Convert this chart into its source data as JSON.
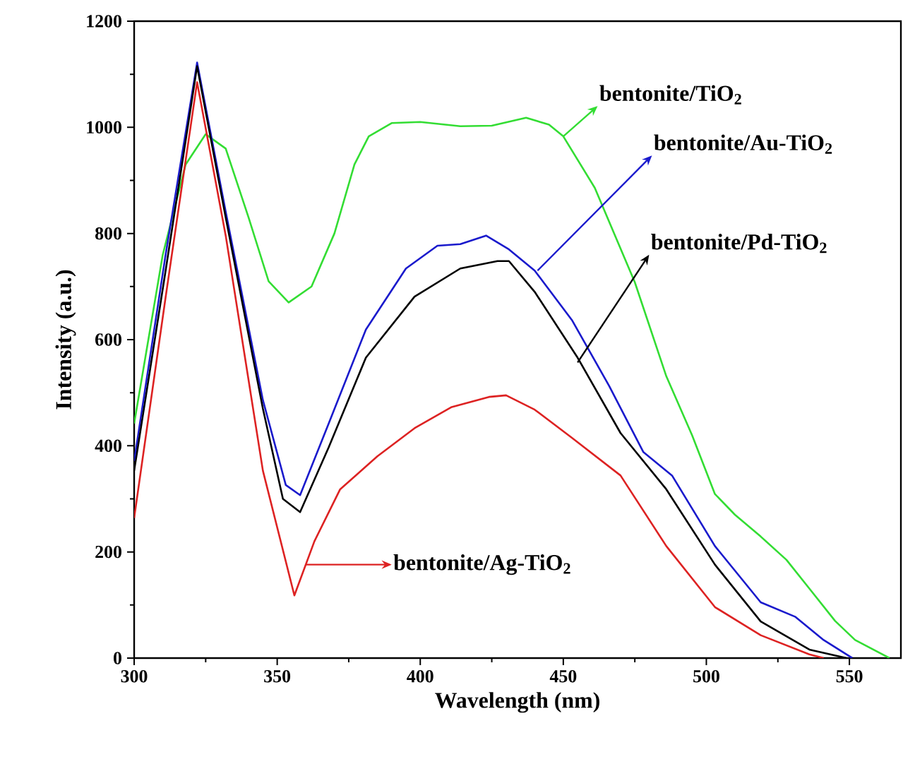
{
  "chart_data": {
    "type": "line",
    "xlabel": "Wavelength (nm)",
    "ylabel": "Intensity (a.u.)",
    "xlim": [
      300,
      568
    ],
    "ylim": [
      0,
      1200
    ],
    "xticks": [
      300,
      350,
      400,
      450,
      500,
      550
    ],
    "yticks": [
      0,
      200,
      400,
      600,
      800,
      1000,
      1200
    ],
    "series": [
      {
        "color": "#33dd33",
        "x": [
          300,
          310,
          318,
          325,
          332,
          340,
          347,
          354,
          362,
          370,
          377,
          382,
          390,
          400,
          414,
          425,
          437,
          445,
          450,
          461,
          475,
          486,
          495,
          503,
          510,
          519,
          528,
          536,
          545,
          552,
          564
        ],
        "values": [
          442,
          760,
          930,
          987,
          960,
          830,
          710,
          670,
          700,
          800,
          930,
          983,
          1008,
          1010,
          1002,
          1003,
          1018,
          1005,
          983,
          886,
          708,
          531,
          420,
          309,
          270,
          229,
          185,
          131,
          70,
          34,
          0
        ]
      },
      {
        "color": "#1a1acc",
        "x": [
          300,
          311,
          322,
          332,
          345,
          353,
          358,
          368,
          381,
          395,
          406,
          414,
          423,
          431,
          440,
          453,
          466,
          478,
          488,
          503,
          519,
          531,
          541,
          551
        ],
        "values": [
          371,
          760,
          1122,
          841,
          486,
          326,
          307,
          442,
          619,
          734,
          777,
          780,
          796,
          770,
          730,
          637,
          513,
          388,
          344,
          211,
          105,
          78,
          34,
          0
        ]
      },
      {
        "color": "#000000",
        "x": [
          300,
          311,
          322,
          332,
          345,
          352,
          358,
          368,
          381,
          398,
          414,
          427,
          431,
          440,
          455,
          470,
          486,
          503,
          519,
          536,
          549
        ],
        "values": [
          353,
          730,
          1115,
          830,
          470,
          300,
          275,
          397,
          566,
          681,
          734,
          748,
          748,
          690,
          566,
          424,
          318,
          176,
          69,
          16,
          0
        ]
      },
      {
        "color": "#dd2222",
        "x": [
          300,
          311,
          322,
          332,
          345,
          356,
          363,
          372,
          385,
          398,
          411,
          424,
          430,
          440,
          453,
          470,
          486,
          503,
          519,
          536,
          541
        ],
        "values": [
          264,
          680,
          1085,
          796,
          353,
          118,
          220,
          318,
          380,
          433,
          473,
          492,
          495,
          468,
          415,
          344,
          211,
          96,
          43,
          7,
          0
        ]
      }
    ],
    "annotations": [
      {
        "text": "bentonite/TiO$_{2}$",
        "x": 450,
        "y": 983
      },
      {
        "text": "bentonite/Au-TiO$_{2}$",
        "x": 441,
        "y": 730
      },
      {
        "text": "bentonite/Pd-TiO$_{2}$",
        "x": 455,
        "y": 557
      },
      "bentonite/Ag-TiO$_{2}$"
    ]
  }
}
